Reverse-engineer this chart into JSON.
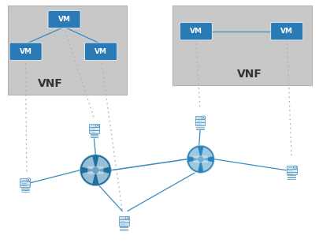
{
  "bg_color": "#ffffff",
  "vnf_box_color": "#c8c8c8",
  "vm_box_color": "#2a7ab5",
  "line_color_solid": "#3a8abf",
  "line_color_dashed": "#9ab8cc",
  "router_color": "#1e6fa0",
  "router_color2": "#2a85bb",
  "server_bg": "#d8eaf5",
  "server_edge": "#4a90b8",
  "server_circle": "#5b9bd5",
  "vnf_text_color": "#333333",
  "vnf1_label": "VNF",
  "vnf2_label": "VNF",
  "vm_label": "VM",
  "figsize": [
    4.06,
    3.08
  ],
  "dpi": 100,
  "xlim": [
    0,
    10
  ],
  "ylim": [
    0,
    7.7
  ]
}
